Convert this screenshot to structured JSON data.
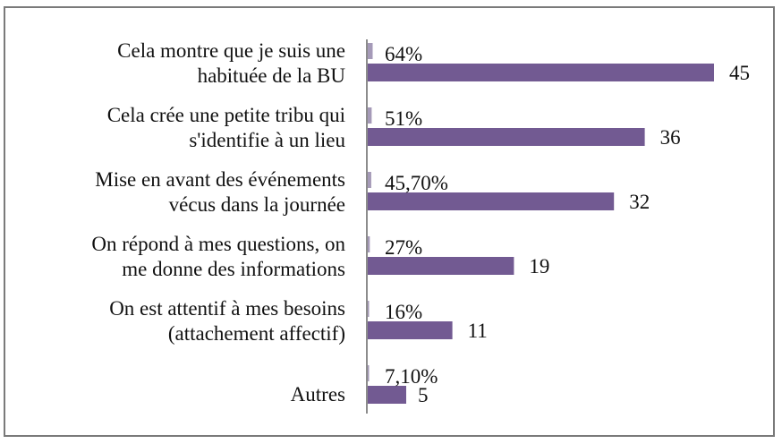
{
  "chart_data": {
    "type": "bar",
    "orientation": "horizontal",
    "title": "",
    "xlabel": "",
    "ylabel": "",
    "grid": false,
    "legend": "none",
    "xlim": [
      0,
      45
    ],
    "categories": [
      [
        "Cela montre que je suis une",
        "habituée de la BU"
      ],
      [
        "Cela crée une petite tribu qui",
        "s'identifie à un lieu"
      ],
      [
        "Mise en avant des événements",
        "vécus dans la journée"
      ],
      [
        "On répond à mes questions, on",
        "me donne des informations"
      ],
      [
        "On est attentif à mes besoins",
        "(attachement affectif)"
      ],
      [
        "Autres"
      ]
    ],
    "series": [
      {
        "values": [
          0.64,
          0.51,
          0.457,
          0.27,
          0.16,
          0.071
        ],
        "labels": [
          "64%",
          "51%",
          "45,70%",
          "27%",
          "16%",
          "7,10%"
        ],
        "color": "#a59ab8"
      },
      {
        "values": [
          45,
          36,
          32,
          19,
          11,
          5
        ],
        "labels": [
          "45",
          "36",
          "32",
          "19",
          "11",
          "5"
        ],
        "color": "#725a92"
      }
    ],
    "axis_color": "#8c8c8c"
  }
}
